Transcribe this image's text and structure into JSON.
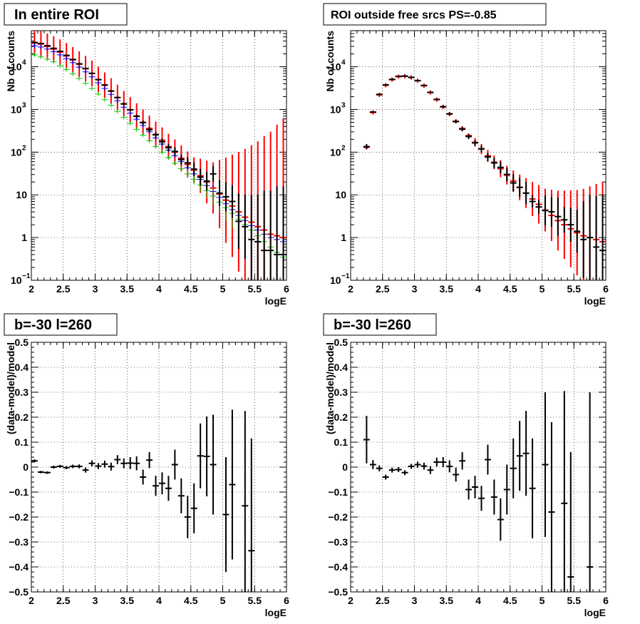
{
  "chart_data": [
    {
      "type": "histogram",
      "title": "In entire ROI",
      "xlabel": "logE",
      "ylabel": "Nb of counts",
      "yscale": "log",
      "xlim": [
        2,
        6
      ],
      "ylim": [
        0.1,
        70000
      ],
      "xticks": [
        "2",
        "2.5",
        "3",
        "3.5",
        "4",
        "4.5",
        "5",
        "5.5",
        "6"
      ],
      "yticks": [
        {
          "v": 0.1,
          "base": "10",
          "exp": "−1"
        },
        {
          "v": 1,
          "label": "1"
        },
        {
          "v": 10,
          "label": "10"
        },
        {
          "v": 100,
          "base": "10",
          "exp": "2"
        },
        {
          "v": 1000,
          "base": "10",
          "exp": "3"
        },
        {
          "v": 10000,
          "base": "10",
          "exp": "4"
        }
      ],
      "grid": true,
      "bin_width": 0.1,
      "x": [
        2.05,
        2.15,
        2.25,
        2.35,
        2.45,
        2.55,
        2.65,
        2.75,
        2.85,
        2.95,
        3.05,
        3.15,
        3.25,
        3.35,
        3.45,
        3.55,
        3.65,
        3.75,
        3.85,
        3.95,
        4.05,
        4.15,
        4.25,
        4.35,
        4.45,
        4.55,
        4.65,
        4.75,
        4.85,
        4.95,
        5.05,
        5.15,
        5.25,
        5.35,
        5.45,
        5.55,
        5.65,
        5.75,
        5.85,
        5.95
      ],
      "series": [
        {
          "color": "#ff0000",
          "values": [
            36000,
            34000,
            30000,
            26000,
            22000,
            18000,
            14500,
            11500,
            9000,
            7000,
            5000,
            3700,
            2700,
            1900,
            1350,
            980,
            700,
            500,
            360,
            260,
            190,
            135,
            100,
            72,
            52,
            38,
            28,
            20,
            14.5,
            10.5,
            7.5,
            5.5,
            4.0,
            3.0,
            2.3,
            1.8,
            1.5,
            1.2,
            1.1,
            1.0
          ],
          "err": [
            0.3,
            0.3,
            0.3,
            0.3,
            0.3,
            0.3,
            0.3,
            0.3,
            0.3,
            0.3,
            0.3,
            0.3,
            0.3,
            0.3,
            0.3,
            0.3,
            0.3,
            0.3,
            0.3,
            0.3,
            0.3,
            0.3,
            0.3,
            0.3,
            0.3,
            0.3,
            0.4,
            0.5,
            0.6,
            0.8,
            1.0,
            1.2,
            1.4,
            1.6,
            1.8,
            2.0,
            2.2,
            2.4,
            2.6,
            2.8
          ]
        },
        {
          "color": "#0000ff",
          "values": [
            31000,
            29000,
            26000,
            22500,
            19000,
            15500,
            12500,
            9800,
            7600,
            5800,
            4200,
            3100,
            2250,
            1600,
            1130,
            820,
            590,
            420,
            300,
            215,
            155,
            112,
            82,
            60,
            43,
            31,
            23,
            16.5,
            12,
            8.7,
            6.2,
            4.5,
            3.3,
            2.5,
            1.9,
            1.5,
            1.2,
            1.0,
            0.9,
            0.8
          ],
          "err": [
            0.05,
            0.05,
            0.05,
            0.05,
            0.05,
            0.05,
            0.05,
            0.05,
            0.05,
            0.05,
            0.05,
            0.05,
            0.05,
            0.05,
            0.05,
            0.05,
            0.05,
            0.05,
            0.05,
            0.05,
            0.05,
            0.05,
            0.05,
            0.05,
            0.08,
            0.1,
            0.12,
            0.14,
            0.16,
            0.2,
            0.25,
            0.3,
            0.35,
            0.4,
            0.5,
            0.6,
            0.7,
            0.8,
            0.9,
            1.0
          ]
        },
        {
          "color": "#00cc00",
          "values": [
            19000,
            17000,
            15000,
            13000,
            10500,
            8600,
            6800,
            5300,
            4100,
            3100,
            2300,
            1700,
            1250,
            900,
            650,
            470,
            340,
            250,
            185,
            135,
            100,
            75,
            55,
            41,
            31,
            23,
            17,
            12.5,
            9.3,
            6.8,
            5.0,
            3.7,
            2.7,
            2.0,
            1.5,
            1.1,
            0.8,
            0.6,
            0.45,
            0.35
          ],
          "err": [
            0.05,
            0.05,
            0.05,
            0.05,
            0.05,
            0.05,
            0.05,
            0.05,
            0.05,
            0.05,
            0.05,
            0.05,
            0.05,
            0.05,
            0.05,
            0.05,
            0.05,
            0.05,
            0.05,
            0.05,
            0.05,
            0.05,
            0.05,
            0.08,
            0.1,
            0.12,
            0.14,
            0.16,
            0.2,
            0.25,
            0.3,
            0.35,
            0.4,
            0.5,
            0.6,
            0.7,
            0.8,
            0.9,
            1.0,
            1.1
          ]
        },
        {
          "color": "#000000",
          "values": [
            37000,
            35000,
            31000,
            27000,
            23000,
            18500,
            14800,
            11700,
            9100,
            7000,
            5000,
            3750,
            2700,
            1900,
            1350,
            980,
            690,
            490,
            335,
            255,
            175,
            127,
            104,
            67,
            56,
            40,
            26,
            21,
            31,
            11,
            9,
            7,
            2.4,
            1.8,
            0.9,
            0.8,
            0.5,
            0.5,
            0.4,
            0.4
          ],
          "err": [
            0.01,
            0.01,
            0.01,
            0.01,
            0.01,
            0.01,
            0.01,
            0.01,
            0.01,
            0.01,
            0.02,
            0.02,
            0.02,
            0.02,
            0.03,
            0.03,
            0.04,
            0.05,
            0.06,
            0.07,
            0.08,
            0.09,
            0.1,
            0.12,
            0.13,
            0.16,
            0.2,
            0.22,
            0.18,
            0.3,
            0.34,
            0.38,
            0.65,
            0.75,
            1.05,
            1.1,
            1.4,
            1.4,
            1.6,
            1.6
          ]
        }
      ]
    },
    {
      "type": "histogram",
      "title": "ROI outside free srcs PS=-0.85",
      "xlabel": "logE",
      "ylabel": "Nb of counts",
      "yscale": "log",
      "xlim": [
        2,
        6
      ],
      "ylim": [
        0.1,
        70000
      ],
      "xticks": [
        "2",
        "2.5",
        "3",
        "3.5",
        "4",
        "4.5",
        "5",
        "5.5",
        "6"
      ],
      "yticks": [
        {
          "v": 0.1,
          "base": "10",
          "exp": "−1"
        },
        {
          "v": 1,
          "label": "1"
        },
        {
          "v": 10,
          "label": "10"
        },
        {
          "v": 100,
          "base": "10",
          "exp": "2"
        },
        {
          "v": 1000,
          "base": "10",
          "exp": "3"
        },
        {
          "v": 10000,
          "base": "10",
          "exp": "4"
        }
      ],
      "grid": true,
      "bin_width": 0.1,
      "x": [
        2.25,
        2.35,
        2.45,
        2.55,
        2.65,
        2.75,
        2.85,
        2.95,
        3.05,
        3.15,
        3.25,
        3.35,
        3.45,
        3.55,
        3.65,
        3.75,
        3.85,
        3.95,
        4.05,
        4.15,
        4.25,
        4.35,
        4.45,
        4.55,
        4.65,
        4.75,
        4.85,
        4.95,
        5.05,
        5.15,
        5.25,
        5.35,
        5.45,
        5.55,
        5.65,
        5.75,
        5.85,
        5.95
      ],
      "series": [
        {
          "color": "#ff0000",
          "values": [
            130,
            850,
            2200,
            3700,
            5000,
            5900,
            6000,
            5600,
            4700,
            3600,
            2500,
            1700,
            1150,
            780,
            530,
            360,
            245,
            170,
            118,
            82,
            58,
            41,
            29,
            21,
            15,
            11,
            8,
            6,
            4.4,
            3.3,
            2.5,
            2.0,
            1.6,
            1.3,
            1.1,
            1.0,
            0.9,
            0.8
          ],
          "err": [
            0.05,
            0.05,
            0.05,
            0.05,
            0.05,
            0.05,
            0.05,
            0.05,
            0.05,
            0.05,
            0.05,
            0.05,
            0.05,
            0.05,
            0.05,
            0.05,
            0.05,
            0.1,
            0.12,
            0.14,
            0.16,
            0.2,
            0.22,
            0.25,
            0.3,
            0.35,
            0.4,
            0.45,
            0.5,
            0.6,
            0.7,
            0.8,
            0.9,
            1.0,
            1.1,
            1.2,
            1.3,
            1.4
          ]
        },
        {
          "color": "#000000",
          "values": [
            135,
            870,
            2250,
            3750,
            5050,
            5950,
            6050,
            5650,
            4750,
            3650,
            2520,
            1720,
            1160,
            790,
            520,
            345,
            232,
            165,
            120,
            77,
            56,
            44,
            30,
            19,
            15,
            11,
            7,
            5.2,
            4.3,
            4.0,
            3.1,
            2.6,
            2.0,
            1.4,
            0.9,
            1.0,
            0.6,
            0.5
          ],
          "err": [
            0.06,
            0.02,
            0.02,
            0.02,
            0.02,
            0.02,
            0.02,
            0.02,
            0.02,
            0.02,
            0.02,
            0.02,
            0.03,
            0.03,
            0.04,
            0.05,
            0.06,
            0.07,
            0.08,
            0.1,
            0.12,
            0.14,
            0.16,
            0.2,
            0.22,
            0.26,
            0.14,
            0.16,
            0.35,
            0.35,
            0.45,
            0.3,
            0.4,
            0.5,
            0.9,
            1.0,
            1.2,
            1.3
          ]
        }
      ]
    },
    {
      "type": "scatter",
      "title": "b=-30 l=260",
      "xlabel": "logE",
      "ylabel": "(data-model)/model",
      "xlim": [
        2,
        6
      ],
      "ylim": [
        -0.5,
        0.5
      ],
      "xticks": [
        "2",
        "2.5",
        "3",
        "3.5",
        "4",
        "4.5",
        "5",
        "5.5",
        "6"
      ],
      "yticks": [
        "−0.5",
        "−0.4",
        "−0.3",
        "−0.2",
        "−0.1",
        "0",
        "0.1",
        "0.2",
        "0.3",
        "0.4",
        "0.5"
      ],
      "grid": true,
      "bin_width": 0.1,
      "x": [
        2.05,
        2.15,
        2.25,
        2.35,
        2.45,
        2.55,
        2.65,
        2.75,
        2.85,
        2.95,
        3.05,
        3.15,
        3.25,
        3.35,
        3.45,
        3.55,
        3.65,
        3.75,
        3.85,
        3.95,
        4.05,
        4.15,
        4.25,
        4.35,
        4.45,
        4.55,
        4.65,
        4.75,
        4.85,
        5.05,
        5.15,
        5.35,
        5.45
      ],
      "values": [
        0.025,
        -0.02,
        -0.022,
        0.0,
        0.003,
        -0.002,
        0.003,
        0.003,
        -0.012,
        0.015,
        0.004,
        0.012,
        0.002,
        0.03,
        0.015,
        0.016,
        0.015,
        -0.04,
        0.028,
        -0.075,
        -0.065,
        -0.085,
        0.01,
        -0.115,
        -0.2,
        -0.165,
        0.045,
        0.043,
        0.01,
        -0.19,
        -0.07,
        -0.155,
        -0.335
      ],
      "err": [
        0.006,
        0.005,
        0.005,
        0.006,
        0.006,
        0.006,
        0.007,
        0.008,
        0.01,
        0.012,
        0.012,
        0.014,
        0.016,
        0.018,
        0.02,
        0.024,
        0.028,
        0.03,
        0.032,
        0.04,
        0.044,
        0.05,
        0.06,
        0.07,
        0.085,
        0.1,
        0.13,
        0.16,
        0.2,
        0.23,
        0.3,
        0.38,
        0.45
      ]
    },
    {
      "type": "scatter",
      "title": "b=-30 l=260",
      "xlabel": "logE",
      "ylabel": "(data-model)/model",
      "xlim": [
        2,
        6
      ],
      "ylim": [
        -0.5,
        0.5
      ],
      "xticks": [
        "2",
        "2.5",
        "3",
        "3.5",
        "4",
        "4.5",
        "5",
        "5.5",
        "6"
      ],
      "yticks": [
        "−0.5",
        "−0.4",
        "−0.3",
        "−0.2",
        "−0.1",
        "0",
        "0.1",
        "0.2",
        "0.3",
        "0.4",
        "0.5"
      ],
      "grid": true,
      "bin_width": 0.1,
      "x": [
        2.25,
        2.35,
        2.45,
        2.55,
        2.65,
        2.75,
        2.85,
        2.95,
        3.05,
        3.15,
        3.25,
        3.35,
        3.45,
        3.55,
        3.65,
        3.75,
        3.85,
        3.95,
        4.05,
        4.15,
        4.25,
        4.35,
        4.45,
        4.55,
        4.65,
        4.75,
        4.85,
        5.05,
        5.15,
        5.35,
        5.45,
        5.75
      ],
      "values": [
        0.11,
        0.01,
        -0.005,
        -0.04,
        -0.012,
        -0.01,
        -0.022,
        0.003,
        0.01,
        0.004,
        -0.012,
        0.02,
        0.02,
        0.003,
        -0.03,
        0.025,
        -0.09,
        -0.08,
        -0.125,
        0.03,
        -0.12,
        -0.21,
        -0.09,
        -0.005,
        0.045,
        0.055,
        -0.085,
        0.01,
        -0.18,
        -0.145,
        -0.44,
        -0.4
      ],
      "err": [
        0.095,
        0.018,
        0.012,
        0.01,
        0.01,
        0.01,
        0.01,
        0.01,
        0.012,
        0.014,
        0.016,
        0.018,
        0.02,
        0.024,
        0.028,
        0.035,
        0.04,
        0.045,
        0.05,
        0.06,
        0.07,
        0.085,
        0.1,
        0.12,
        0.14,
        0.17,
        0.2,
        0.29,
        0.36,
        0.45,
        0.5,
        0.7
      ]
    }
  ]
}
